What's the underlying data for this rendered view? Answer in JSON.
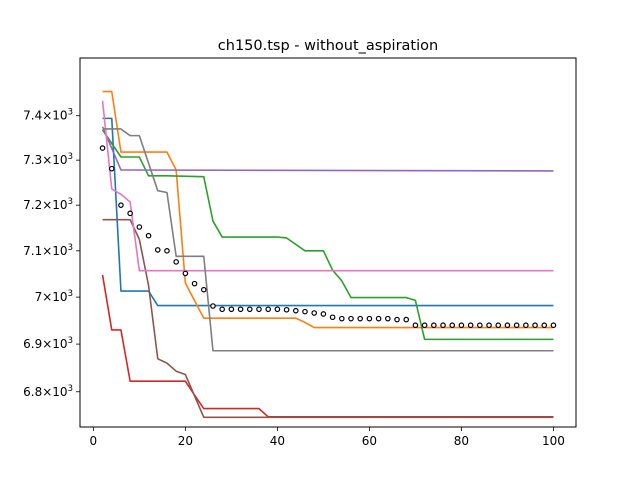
{
  "chart_data": {
    "type": "line",
    "title": "ch150.tsp - without_aspiration",
    "xlabel": "",
    "ylabel": "",
    "yscale": "log",
    "xlim": [
      -2.9,
      104.9
    ],
    "ylim": [
      6727,
      7532
    ],
    "xticks": [
      0,
      20,
      40,
      60,
      80,
      100
    ],
    "xtick_labels": [
      "0",
      "20",
      "40",
      "60",
      "80",
      "100"
    ],
    "yticks": [
      6800,
      6900,
      7000,
      7100,
      7200,
      7300,
      7400
    ],
    "ytick_labels": [
      {
        "base": "6.8",
        "exp": "3"
      },
      {
        "base": "6.9",
        "exp": "3"
      },
      {
        "base": "7",
        "exp": "3"
      },
      {
        "base": "7.1",
        "exp": "3"
      },
      {
        "base": "7.2",
        "exp": "3"
      },
      {
        "base": "7.3",
        "exp": "3"
      },
      {
        "base": "7.4",
        "exp": "3"
      }
    ],
    "grid": false,
    "legend": "none",
    "series": [
      {
        "color": "#1f77b4",
        "points": [
          [
            2,
            7394
          ],
          [
            4,
            7394
          ],
          [
            6,
            7013
          ],
          [
            12,
            7013
          ],
          [
            14,
            6982
          ],
          [
            100,
            6982
          ]
        ]
      },
      {
        "color": "#ff7f0e",
        "points": [
          [
            2,
            7455
          ],
          [
            4,
            7455
          ],
          [
            6,
            7318
          ],
          [
            16,
            7318
          ],
          [
            18,
            7278
          ],
          [
            20,
            7030
          ],
          [
            24,
            6955
          ],
          [
            44,
            6955
          ],
          [
            46,
            6946
          ],
          [
            48,
            6935
          ],
          [
            100,
            6935
          ]
        ]
      },
      {
        "color": "#2ca02c",
        "points": [
          [
            2,
            7368
          ],
          [
            6,
            7307
          ],
          [
            10,
            7307
          ],
          [
            12,
            7265
          ],
          [
            16,
            7265
          ],
          [
            24,
            7263
          ],
          [
            26,
            7165
          ],
          [
            28,
            7130
          ],
          [
            40,
            7130
          ],
          [
            42,
            7128
          ],
          [
            46,
            7100
          ],
          [
            50,
            7100
          ],
          [
            52,
            7058
          ],
          [
            54,
            7035
          ],
          [
            56,
            6999
          ],
          [
            68,
            6999
          ],
          [
            70,
            6993
          ],
          [
            72,
            6910
          ],
          [
            100,
            6910
          ]
        ]
      },
      {
        "color": "#d62728",
        "points": [
          [
            2,
            7048
          ],
          [
            4,
            6930
          ],
          [
            6,
            6930
          ],
          [
            8,
            6822
          ],
          [
            20,
            6822
          ],
          [
            22,
            6793
          ],
          [
            24,
            6765
          ],
          [
            36,
            6765
          ],
          [
            38,
            6748
          ],
          [
            100,
            6748
          ]
        ]
      },
      {
        "color": "#9467bd",
        "points": [
          [
            2,
            7375
          ],
          [
            6,
            7278
          ],
          [
            100,
            7276
          ]
        ]
      },
      {
        "color": "#8c564b",
        "points": [
          [
            2,
            7168
          ],
          [
            8,
            7168
          ],
          [
            10,
            7125
          ],
          [
            12,
            7025
          ],
          [
            14,
            6869
          ],
          [
            16,
            6860
          ],
          [
            18,
            6843
          ],
          [
            20,
            6836
          ],
          [
            24,
            6747
          ],
          [
            100,
            6747
          ]
        ]
      },
      {
        "color": "#e377c2",
        "points": [
          [
            2,
            7434
          ],
          [
            4,
            7236
          ],
          [
            6,
            7224
          ],
          [
            8,
            7207
          ],
          [
            10,
            7057
          ],
          [
            100,
            7057
          ]
        ]
      },
      {
        "color": "#7f7f7f",
        "points": [
          [
            2,
            7370
          ],
          [
            6,
            7370
          ],
          [
            8,
            7355
          ],
          [
            10,
            7355
          ],
          [
            14,
            7232
          ],
          [
            16,
            7228
          ],
          [
            18,
            7088
          ],
          [
            24,
            7088
          ],
          [
            26,
            6886
          ],
          [
            100,
            6886
          ]
        ]
      }
    ],
    "markers": {
      "style": "open-circle",
      "color": "#000000",
      "points": [
        [
          2,
          7327
        ],
        [
          4,
          7281
        ],
        [
          6,
          7200
        ],
        [
          8,
          7182
        ],
        [
          10,
          7152
        ],
        [
          12,
          7133
        ],
        [
          14,
          7102
        ],
        [
          16,
          7100
        ],
        [
          18,
          7076
        ],
        [
          20,
          7051
        ],
        [
          22,
          7029
        ],
        [
          24,
          7016
        ],
        [
          26,
          6981
        ],
        [
          28,
          6974
        ],
        [
          30,
          6974
        ],
        [
          32,
          6974
        ],
        [
          34,
          6974
        ],
        [
          36,
          6974
        ],
        [
          38,
          6974
        ],
        [
          40,
          6974
        ],
        [
          42,
          6973
        ],
        [
          44,
          6971
        ],
        [
          46,
          6969
        ],
        [
          48,
          6966
        ],
        [
          50,
          6964
        ],
        [
          52,
          6957
        ],
        [
          54,
          6954
        ],
        [
          56,
          6954
        ],
        [
          58,
          6954
        ],
        [
          60,
          6954
        ],
        [
          62,
          6954
        ],
        [
          64,
          6954
        ],
        [
          66,
          6952
        ],
        [
          68,
          6952
        ],
        [
          70,
          6940
        ],
        [
          72,
          6940
        ],
        [
          74,
          6940
        ],
        [
          76,
          6940
        ],
        [
          78,
          6940
        ],
        [
          80,
          6940
        ],
        [
          82,
          6940
        ],
        [
          84,
          6940
        ],
        [
          86,
          6940
        ],
        [
          88,
          6940
        ],
        [
          90,
          6940
        ],
        [
          92,
          6940
        ],
        [
          94,
          6940
        ],
        [
          96,
          6940
        ],
        [
          98,
          6940
        ],
        [
          100,
          6940
        ]
      ]
    }
  }
}
